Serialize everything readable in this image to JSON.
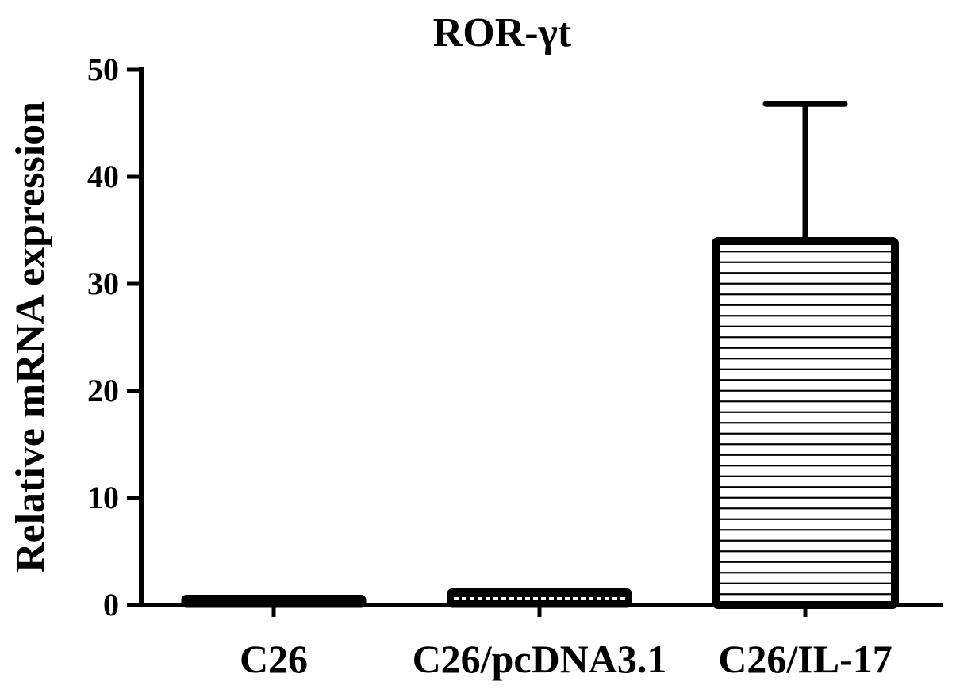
{
  "chart_data": {
    "type": "bar",
    "title": "ROR-γt",
    "xlabel": "",
    "ylabel": "Relative mRNA expression",
    "categories": [
      "C26",
      "C26/pcDNA3.1",
      "C26/IL-17"
    ],
    "values": [
      0.7,
      1.3,
      34.0
    ],
    "error_upper": [
      0,
      0.4,
      46.8
    ],
    "ylim": [
      0,
      50
    ],
    "yticks": [
      "0",
      "10",
      "20",
      "30",
      "40",
      "50"
    ],
    "grid": false,
    "legend": "none",
    "bar_fill": "#ffffff",
    "bar_stroke": "#000000",
    "hatch": "horizontal-lines"
  }
}
